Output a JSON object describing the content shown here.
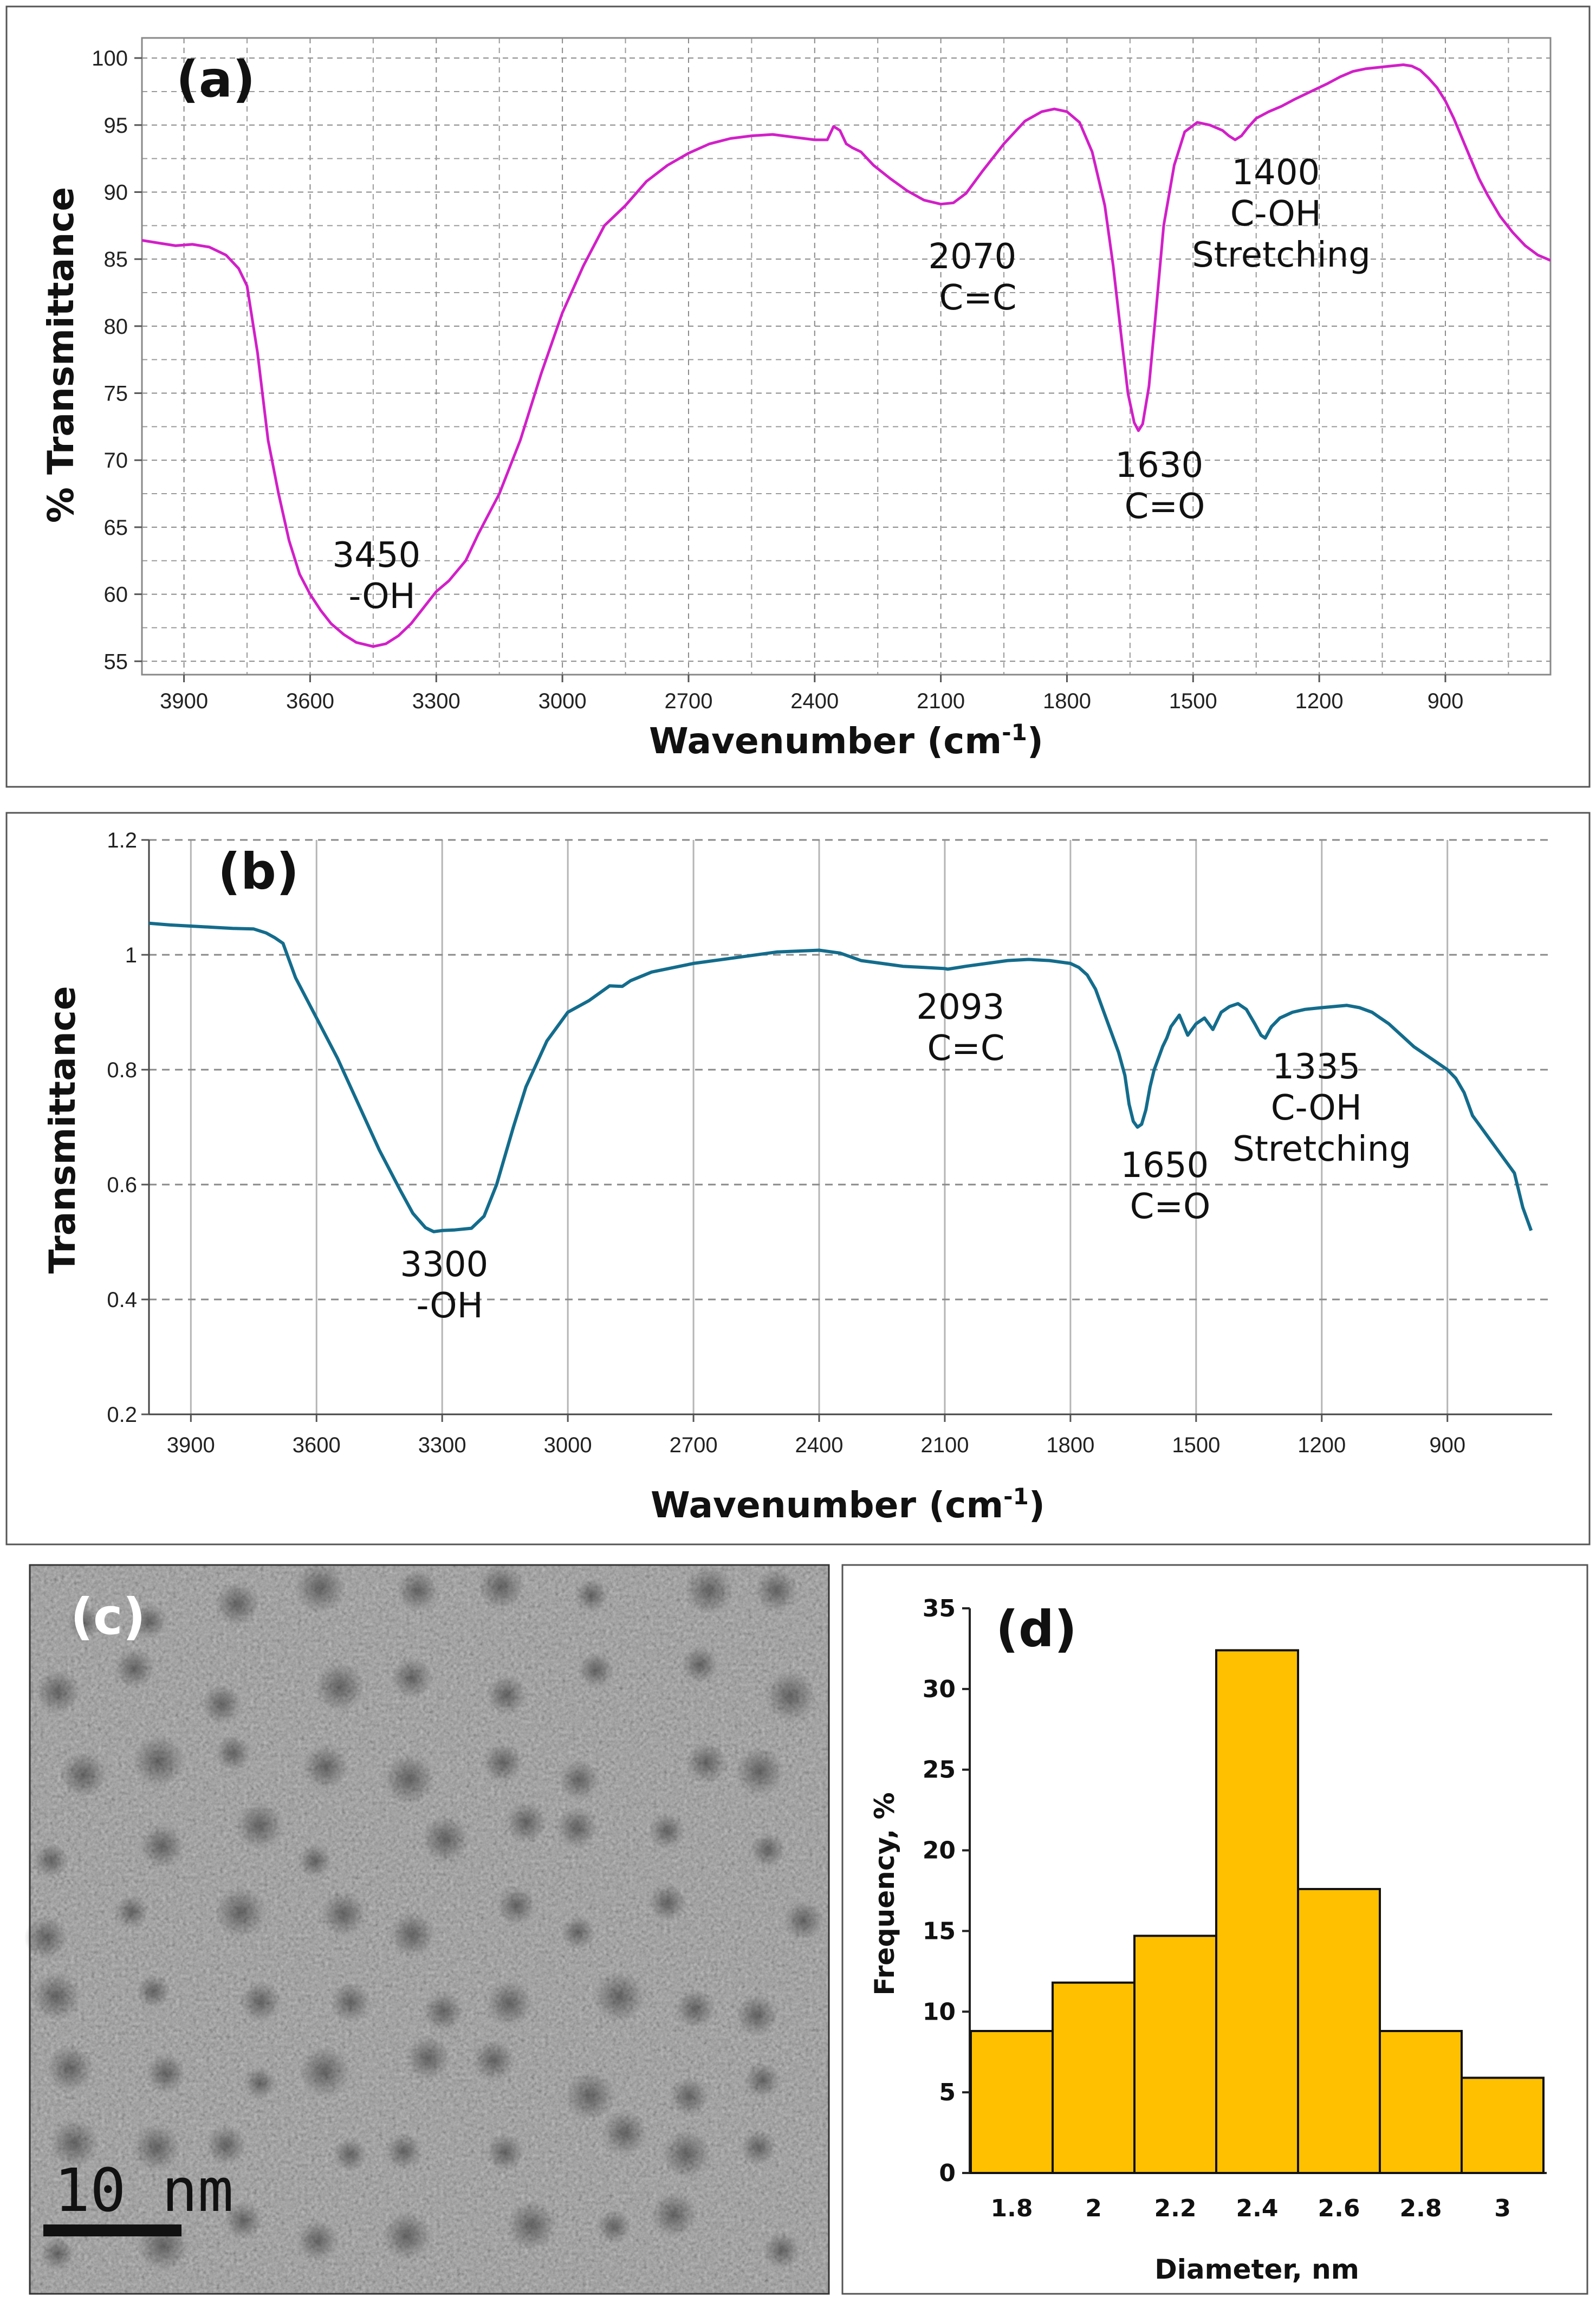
{
  "chart_data": [
    {
      "panel": "(a)",
      "type": "line",
      "xlabel": "Wavenumber (cm",
      "xlabel_sup": "-1",
      "xlabel_close": ")",
      "ylabel": "% Transmittance",
      "xlim": [
        4000,
        650
      ],
      "ylim": [
        54,
        101.5
      ],
      "xticks": [
        3900,
        3600,
        3300,
        3000,
        2700,
        2400,
        2100,
        1800,
        1500,
        1200,
        900
      ],
      "yticks": [
        55,
        60,
        65,
        70,
        75,
        80,
        85,
        90,
        95,
        100
      ],
      "color": "#d21fc8",
      "x": [
        4000,
        3960,
        3920,
        3880,
        3840,
        3800,
        3770,
        3750,
        3725,
        3700,
        3675,
        3650,
        3625,
        3600,
        3575,
        3550,
        3520,
        3490,
        3450,
        3420,
        3390,
        3360,
        3330,
        3300,
        3270,
        3230,
        3200,
        3150,
        3100,
        3050,
        3000,
        2950,
        2900,
        2850,
        2800,
        2750,
        2700,
        2650,
        2600,
        2550,
        2500,
        2450,
        2400,
        2370,
        2355,
        2340,
        2325,
        2310,
        2290,
        2260,
        2220,
        2180,
        2140,
        2100,
        2070,
        2040,
        2000,
        1950,
        1900,
        1860,
        1830,
        1800,
        1770,
        1740,
        1710,
        1690,
        1670,
        1655,
        1640,
        1630,
        1620,
        1605,
        1590,
        1570,
        1545,
        1520,
        1490,
        1460,
        1430,
        1415,
        1400,
        1385,
        1370,
        1350,
        1320,
        1290,
        1260,
        1220,
        1180,
        1150,
        1120,
        1090,
        1060,
        1030,
        1000,
        980,
        960,
        940,
        920,
        900,
        880,
        860,
        840,
        820,
        800,
        770,
        740,
        710,
        680,
        650
      ],
      "y": [
        86.4,
        86.2,
        86.0,
        86.1,
        85.9,
        85.3,
        84.3,
        83.0,
        78.0,
        71.5,
        67.5,
        64.0,
        61.5,
        60.0,
        58.8,
        57.8,
        57.0,
        56.4,
        56.1,
        56.3,
        56.9,
        57.8,
        59.0,
        60.2,
        61.0,
        62.5,
        64.5,
        67.5,
        71.5,
        76.5,
        81.0,
        84.5,
        87.5,
        89.0,
        90.8,
        92.0,
        92.9,
        93.6,
        94.0,
        94.2,
        94.3,
        94.1,
        93.9,
        93.9,
        94.9,
        94.6,
        93.6,
        93.3,
        93.0,
        92.0,
        91.0,
        90.1,
        89.4,
        89.1,
        89.2,
        89.9,
        91.6,
        93.6,
        95.3,
        96.0,
        96.2,
        96.0,
        95.2,
        93.0,
        89.0,
        84.5,
        79.0,
        75.0,
        72.8,
        72.2,
        72.7,
        75.5,
        80.5,
        87.5,
        92.0,
        94.5,
        95.2,
        95.0,
        94.6,
        94.2,
        93.9,
        94.2,
        94.8,
        95.5,
        96.0,
        96.4,
        96.9,
        97.5,
        98.1,
        98.6,
        99.0,
        99.2,
        99.3,
        99.4,
        99.5,
        99.4,
        99.1,
        98.5,
        97.8,
        96.8,
        95.5,
        94.0,
        92.5,
        91.0,
        89.8,
        88.2,
        87.0,
        86.0,
        85.3,
        84.9
      ],
      "annotations": [
        {
          "lines": [
            "3450",
            "-OH"
          ]
        },
        {
          "lines": [
            "2070",
            "C=C"
          ]
        },
        {
          "lines": [
            "1630",
            "C=O"
          ]
        },
        {
          "lines": [
            "1400",
            "C-OH",
            "Stretching"
          ]
        }
      ]
    },
    {
      "panel": "(b)",
      "type": "line",
      "xlabel": "Wavenumber (cm",
      "xlabel_sup": "-1",
      "xlabel_close": ")",
      "ylabel": "Transmittance",
      "xlim": [
        4000,
        650
      ],
      "ylim": [
        0.2,
        1.2
      ],
      "xticks": [
        3900,
        3600,
        3300,
        3000,
        2700,
        2400,
        2100,
        1800,
        1500,
        1200,
        900
      ],
      "yticks": [
        0.2,
        0.4,
        0.6,
        0.8,
        1,
        1.2
      ],
      "ytick_labels": [
        "0.2",
        "0.4",
        "0.6",
        "0.8",
        "1",
        "1.2"
      ],
      "color": "#136c8c",
      "x": [
        4000,
        3950,
        3900,
        3850,
        3800,
        3750,
        3720,
        3700,
        3680,
        3650,
        3600,
        3550,
        3500,
        3450,
        3400,
        3370,
        3340,
        3320,
        3300,
        3270,
        3230,
        3200,
        3170,
        3130,
        3100,
        3050,
        3000,
        2950,
        2900,
        2870,
        2850,
        2800,
        2700,
        2600,
        2500,
        2400,
        2350,
        2300,
        2250,
        2200,
        2150,
        2100,
        2093,
        2050,
        2000,
        1950,
        1900,
        1850,
        1800,
        1780,
        1760,
        1740,
        1720,
        1700,
        1685,
        1670,
        1660,
        1650,
        1640,
        1630,
        1620,
        1610,
        1600,
        1590,
        1580,
        1570,
        1560,
        1540,
        1520,
        1500,
        1480,
        1460,
        1440,
        1420,
        1400,
        1380,
        1360,
        1345,
        1335,
        1320,
        1300,
        1270,
        1240,
        1200,
        1170,
        1140,
        1110,
        1080,
        1060,
        1040,
        1010,
        980,
        950,
        920,
        900,
        880,
        860,
        840,
        820,
        800,
        780,
        760,
        740,
        720,
        700
      ],
      "y": [
        1.055,
        1.052,
        1.05,
        1.048,
        1.046,
        1.045,
        1.038,
        1.03,
        1.02,
        0.96,
        0.89,
        0.82,
        0.74,
        0.66,
        0.59,
        0.55,
        0.525,
        0.518,
        0.52,
        0.521,
        0.524,
        0.545,
        0.6,
        0.7,
        0.77,
        0.85,
        0.9,
        0.92,
        0.946,
        0.945,
        0.955,
        0.97,
        0.985,
        0.995,
        1.005,
        1.008,
        1.003,
        0.99,
        0.985,
        0.98,
        0.978,
        0.976,
        0.975,
        0.98,
        0.985,
        0.99,
        0.992,
        0.99,
        0.985,
        0.978,
        0.965,
        0.94,
        0.9,
        0.86,
        0.83,
        0.79,
        0.74,
        0.71,
        0.7,
        0.705,
        0.73,
        0.77,
        0.8,
        0.82,
        0.84,
        0.855,
        0.875,
        0.895,
        0.86,
        0.88,
        0.89,
        0.87,
        0.9,
        0.91,
        0.915,
        0.905,
        0.88,
        0.86,
        0.855,
        0.875,
        0.89,
        0.9,
        0.905,
        0.908,
        0.91,
        0.912,
        0.908,
        0.9,
        0.89,
        0.88,
        0.86,
        0.84,
        0.825,
        0.81,
        0.8,
        0.785,
        0.76,
        0.72,
        0.7,
        0.68,
        0.66,
        0.64,
        0.62,
        0.56,
        0.52
      ],
      "annotations": [
        {
          "lines": [
            "3300",
            "-OH"
          ]
        },
        {
          "lines": [
            "2093",
            "C=C"
          ]
        },
        {
          "lines": [
            "1650",
            "C=O"
          ]
        },
        {
          "lines": [
            "1335",
            "C-OH",
            "Stretching"
          ]
        }
      ]
    },
    {
      "panel": "(d)",
      "type": "bar",
      "xlabel": "Diameter, nm",
      "ylabel": "Frequency, %",
      "categories": [
        "1.8",
        "2",
        "2.2",
        "2.4",
        "2.6",
        "2.8",
        "3"
      ],
      "values": [
        8.8,
        11.8,
        14.7,
        32.4,
        17.6,
        8.8,
        5.9
      ],
      "ylim": [
        0,
        35
      ],
      "yticks": [
        0,
        5,
        10,
        15,
        20,
        25,
        30,
        35
      ],
      "color": "#ffc000"
    }
  ],
  "micrograph": {
    "label": "(c)",
    "scale_bar_label": "10 nm"
  }
}
